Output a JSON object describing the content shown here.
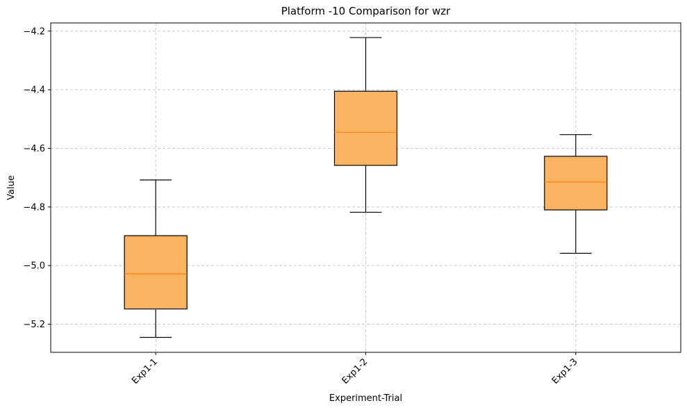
{
  "chart_data": {
    "type": "box",
    "title": "Platform -10 Comparison for wzr",
    "xlabel": "Experiment-Trial",
    "ylabel": "Value",
    "categories": [
      "Exp1-1",
      "Exp1-2",
      "Exp1-3"
    ],
    "boxes": [
      {
        "category": "Exp1-1",
        "whisker_low": -5.245,
        "q1": -5.148,
        "median": -5.028,
        "q3": -4.898,
        "whisker_high": -4.708
      },
      {
        "category": "Exp1-2",
        "whisker_low": -4.818,
        "q1": -4.658,
        "median": -4.545,
        "q3": -4.405,
        "whisker_high": -4.222
      },
      {
        "category": "Exp1-3",
        "whisker_low": -4.958,
        "q1": -4.81,
        "median": -4.715,
        "q3": -4.627,
        "whisker_high": -4.553
      }
    ],
    "yticks": [
      -5.2,
      -5.0,
      -4.8,
      -4.6,
      -4.4,
      -4.2
    ],
    "ytick_labels": [
      "−5.2",
      "−5.0",
      "−4.8",
      "−4.6",
      "−4.4",
      "−4.2"
    ],
    "ylim": [
      -5.296,
      -4.172
    ],
    "grid": true,
    "legend": "none",
    "colors": {
      "box_fill": "#fdb462",
      "box_edge": "#000000",
      "median": "#ff7f0e",
      "grid": "#c8c8c8"
    }
  }
}
